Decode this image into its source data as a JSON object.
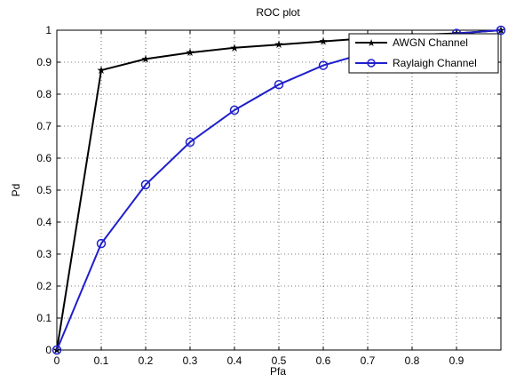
{
  "chart_data": {
    "type": "line",
    "title": "ROC plot",
    "xlabel": "Pfa",
    "ylabel": "Pd",
    "xlim": [
      0,
      1
    ],
    "ylim": [
      0,
      1
    ],
    "xticks": [
      "0",
      "0.1",
      "0.2",
      "0.3",
      "0.4",
      "0.5",
      "0.6",
      "0.7",
      "0.8",
      "0.9"
    ],
    "xtick_values": [
      0,
      0.1,
      0.2,
      0.3,
      0.4,
      0.5,
      0.6,
      0.7,
      0.8,
      0.9
    ],
    "yticks": [
      "0",
      "0.1",
      "0.2",
      "0.3",
      "0.4",
      "0.5",
      "0.6",
      "0.7",
      "0.8",
      "0.9",
      "1"
    ],
    "ytick_values": [
      0,
      0.1,
      0.2,
      0.3,
      0.4,
      0.5,
      0.6,
      0.7,
      0.8,
      0.9,
      1
    ],
    "grid": true,
    "legend_position": "top-right",
    "x": [
      0,
      0.1,
      0.2,
      0.3,
      0.4,
      0.5,
      0.6,
      0.7,
      0.8,
      0.9,
      1.0
    ],
    "series": [
      {
        "name": "AWGN Channel",
        "color": "#000000",
        "marker": "star",
        "values": [
          0,
          0.875,
          0.91,
          0.93,
          0.945,
          0.955,
          0.965,
          0.975,
          0.985,
          0.99,
          1.0
        ]
      },
      {
        "name": "Raylaigh Channel",
        "color": "#1f1fcc",
        "marker": "circle",
        "values": [
          0,
          0.333,
          0.517,
          0.65,
          0.75,
          0.83,
          0.89,
          0.93,
          0.965,
          0.99,
          1.0
        ]
      }
    ]
  }
}
